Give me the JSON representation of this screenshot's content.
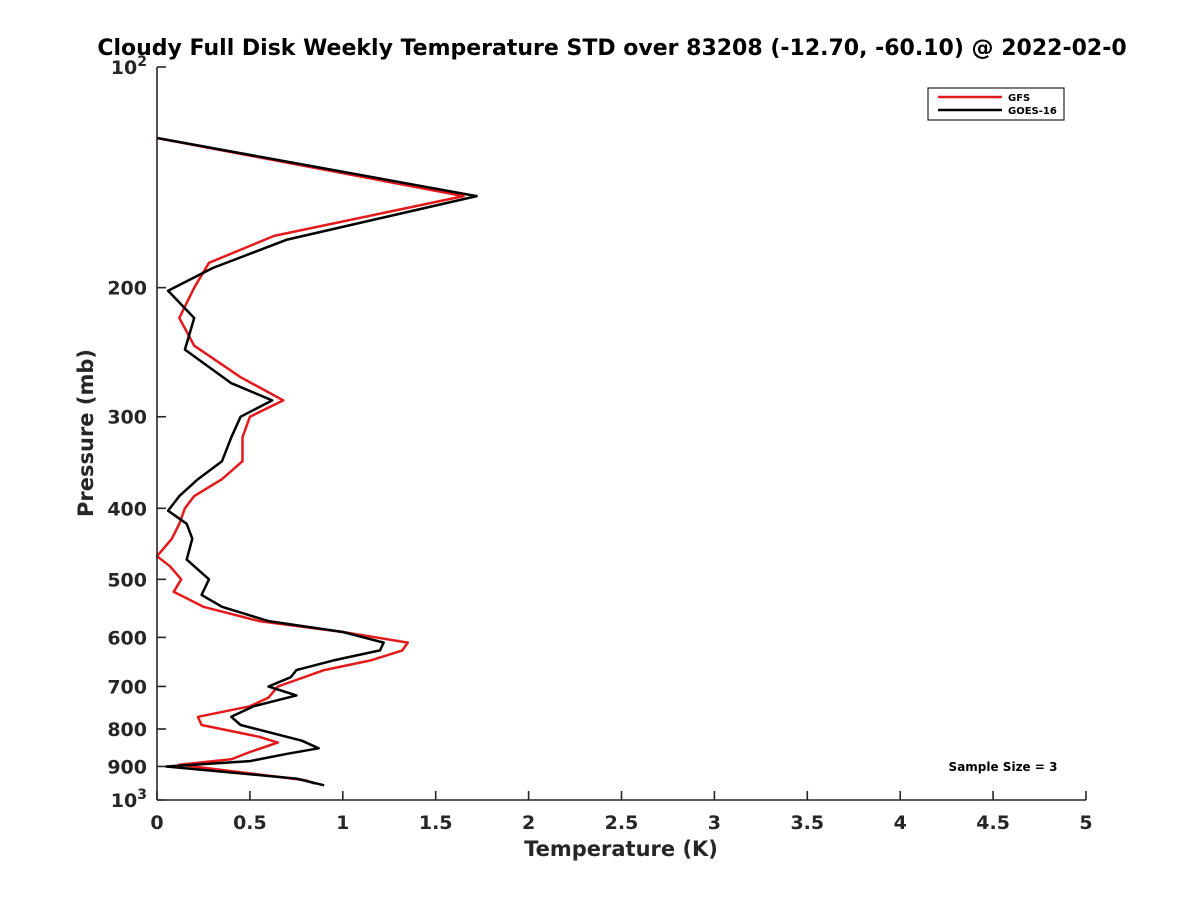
{
  "chart_data": {
    "type": "line",
    "title": "Cloudy Full Disk Weekly Temperature STD over 83208 (-12.70, -60.10) @ 2022-02-0",
    "xlabel": "Temperature (K)",
    "ylabel": "Pressure (mb)",
    "xlim": [
      0,
      5
    ],
    "ylim": [
      100,
      1000
    ],
    "yscale": "log",
    "y_reversed": true,
    "grid": false,
    "legend_position": "top-right",
    "x_ticks": [
      {
        "value": 0,
        "label": "0"
      },
      {
        "value": 0.5,
        "label": "0.5"
      },
      {
        "value": 1,
        "label": "1"
      },
      {
        "value": 1.5,
        "label": "1.5"
      },
      {
        "value": 2,
        "label": "2"
      },
      {
        "value": 2.5,
        "label": "2.5"
      },
      {
        "value": 3,
        "label": "3"
      },
      {
        "value": 3.5,
        "label": "3.5"
      },
      {
        "value": 4,
        "label": "4"
      },
      {
        "value": 4.5,
        "label": "4.5"
      },
      {
        "value": 5,
        "label": "5"
      }
    ],
    "y_ticks": [
      {
        "value": 200,
        "label": "200"
      },
      {
        "value": 300,
        "label": "300"
      },
      {
        "value": 400,
        "label": "400"
      },
      {
        "value": 500,
        "label": "500"
      },
      {
        "value": 600,
        "label": "600"
      },
      {
        "value": 700,
        "label": "700"
      },
      {
        "value": 800,
        "label": "800"
      },
      {
        "value": 900,
        "label": "900"
      }
    ],
    "y_decade_ticks": [
      {
        "value": 100,
        "base": "10",
        "exp": "2"
      },
      {
        "value": 1000,
        "base": "10",
        "exp": "3"
      }
    ],
    "annotation": "Sample Size = 3",
    "series": [
      {
        "name": "GFS",
        "color": "#e31a1c",
        "points": [
          {
            "t": 0.0,
            "p": 125
          },
          {
            "t": 1.65,
            "p": 150
          },
          {
            "t": 0.63,
            "p": 170
          },
          {
            "t": 0.28,
            "p": 185
          },
          {
            "t": 0.2,
            "p": 200
          },
          {
            "t": 0.12,
            "p": 220
          },
          {
            "t": 0.2,
            "p": 240
          },
          {
            "t": 0.45,
            "p": 265
          },
          {
            "t": 0.68,
            "p": 285
          },
          {
            "t": 0.5,
            "p": 300
          },
          {
            "t": 0.46,
            "p": 320
          },
          {
            "t": 0.46,
            "p": 345
          },
          {
            "t": 0.35,
            "p": 365
          },
          {
            "t": 0.2,
            "p": 385
          },
          {
            "t": 0.15,
            "p": 400
          },
          {
            "t": 0.12,
            "p": 420
          },
          {
            "t": 0.08,
            "p": 440
          },
          {
            "t": 0.0,
            "p": 465
          },
          {
            "t": 0.07,
            "p": 480
          },
          {
            "t": 0.13,
            "p": 500
          },
          {
            "t": 0.09,
            "p": 520
          },
          {
            "t": 0.25,
            "p": 545
          },
          {
            "t": 0.55,
            "p": 570
          },
          {
            "t": 1.0,
            "p": 590
          },
          {
            "t": 1.35,
            "p": 610
          },
          {
            "t": 1.32,
            "p": 625
          },
          {
            "t": 1.15,
            "p": 645
          },
          {
            "t": 0.9,
            "p": 665
          },
          {
            "t": 0.65,
            "p": 700
          },
          {
            "t": 0.6,
            "p": 725
          },
          {
            "t": 0.5,
            "p": 745
          },
          {
            "t": 0.22,
            "p": 770
          },
          {
            "t": 0.24,
            "p": 790
          },
          {
            "t": 0.55,
            "p": 820
          },
          {
            "t": 0.65,
            "p": 835
          },
          {
            "t": 0.5,
            "p": 860
          },
          {
            "t": 0.4,
            "p": 880
          },
          {
            "t": 0.12,
            "p": 895
          },
          {
            "t": 0.8,
            "p": 940
          },
          {
            "t": 0.85,
            "p": 950
          }
        ]
      },
      {
        "name": "GOES-16",
        "color": "#000000",
        "points": [
          {
            "t": 0.0,
            "p": 125
          },
          {
            "t": 1.72,
            "p": 150
          },
          {
            "t": 0.7,
            "p": 172
          },
          {
            "t": 0.3,
            "p": 188
          },
          {
            "t": 0.06,
            "p": 202
          },
          {
            "t": 0.2,
            "p": 220
          },
          {
            "t": 0.15,
            "p": 243
          },
          {
            "t": 0.4,
            "p": 270
          },
          {
            "t": 0.62,
            "p": 285
          },
          {
            "t": 0.45,
            "p": 300
          },
          {
            "t": 0.4,
            "p": 320
          },
          {
            "t": 0.35,
            "p": 345
          },
          {
            "t": 0.22,
            "p": 365
          },
          {
            "t": 0.12,
            "p": 385
          },
          {
            "t": 0.06,
            "p": 403
          },
          {
            "t": 0.16,
            "p": 420
          },
          {
            "t": 0.19,
            "p": 440
          },
          {
            "t": 0.16,
            "p": 470
          },
          {
            "t": 0.28,
            "p": 500
          },
          {
            "t": 0.24,
            "p": 525
          },
          {
            "t": 0.35,
            "p": 545
          },
          {
            "t": 0.6,
            "p": 570
          },
          {
            "t": 1.0,
            "p": 590
          },
          {
            "t": 1.22,
            "p": 610
          },
          {
            "t": 1.2,
            "p": 625
          },
          {
            "t": 0.95,
            "p": 645
          },
          {
            "t": 0.75,
            "p": 665
          },
          {
            "t": 0.72,
            "p": 680
          },
          {
            "t": 0.6,
            "p": 700
          },
          {
            "t": 0.75,
            "p": 720
          },
          {
            "t": 0.52,
            "p": 745
          },
          {
            "t": 0.4,
            "p": 770
          },
          {
            "t": 0.45,
            "p": 790
          },
          {
            "t": 0.78,
            "p": 830
          },
          {
            "t": 0.87,
            "p": 850
          },
          {
            "t": 0.7,
            "p": 865
          },
          {
            "t": 0.5,
            "p": 885
          },
          {
            "t": 0.05,
            "p": 900
          },
          {
            "t": 0.75,
            "p": 935
          },
          {
            "t": 0.9,
            "p": 955
          }
        ]
      }
    ]
  }
}
